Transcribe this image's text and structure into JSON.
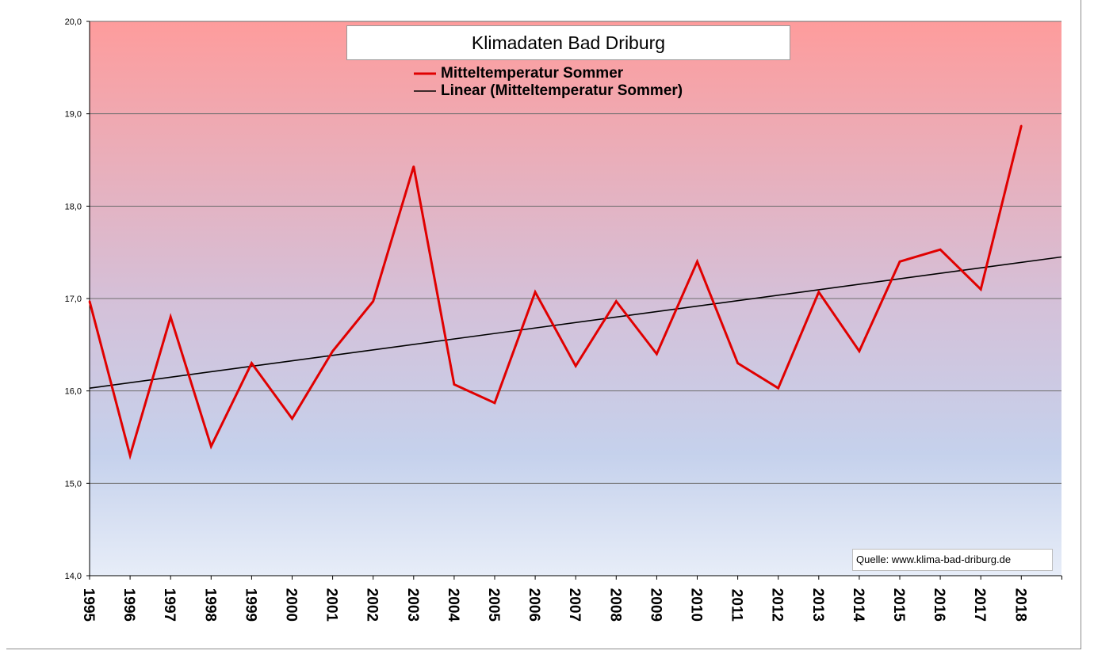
{
  "chart_data": {
    "type": "line",
    "title": "Klimadaten Bad Driburg",
    "source": "Quelle: www.klima-bad-driburg.de",
    "x": [
      "1995",
      "1996",
      "1997",
      "1998",
      "1999",
      "2000",
      "2001",
      "2002",
      "2003",
      "2004",
      "2005",
      "2006",
      "2007",
      "2008",
      "2009",
      "2010",
      "2011",
      "2012",
      "2013",
      "2014",
      "2015",
      "2016",
      "2017",
      "2018"
    ],
    "series": [
      {
        "name": "Mitteltemperatur Sommer",
        "color": "#e00000",
        "values": [
          16.97,
          15.3,
          16.8,
          15.4,
          16.3,
          15.7,
          16.43,
          16.97,
          18.43,
          16.07,
          15.87,
          17.07,
          16.27,
          16.97,
          16.4,
          17.4,
          16.3,
          16.03,
          17.07,
          16.43,
          17.4,
          17.53,
          17.1,
          18.87
        ]
      },
      {
        "name": "Linear (Mitteltemperatur Sommer)",
        "color": "#000000",
        "trendline": true,
        "start": 16.03,
        "end": 17.45
      }
    ],
    "ylim": [
      14.0,
      20.0
    ],
    "yticks": [
      "14,0",
      "15,0",
      "16,0",
      "17,0",
      "18,0",
      "19,0",
      "20,0"
    ],
    "xlabel": "",
    "ylabel": "",
    "grid": true,
    "legend": "top-center",
    "background_gradient": [
      "#fe9c9c",
      "#e7edf8"
    ]
  }
}
